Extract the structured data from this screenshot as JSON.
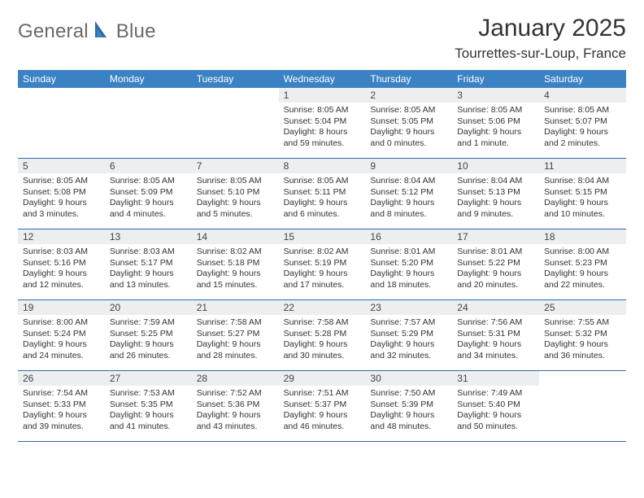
{
  "logo": {
    "text1": "General",
    "text2": "Blue"
  },
  "title": "January 2025",
  "location": "Tourrettes-sur-Loup, France",
  "colors": {
    "header_bg": "#3b82c4",
    "header_text": "#ffffff",
    "daynum_bg": "#eceef0",
    "border": "#2f6aa8",
    "logo_gray": "#6a6a6a",
    "logo_blue": "#2f6aa8"
  },
  "dow": [
    "Sunday",
    "Monday",
    "Tuesday",
    "Wednesday",
    "Thursday",
    "Friday",
    "Saturday"
  ],
  "weeks": [
    [
      null,
      null,
      null,
      {
        "n": "1",
        "sr": "8:05 AM",
        "ss": "5:04 PM",
        "dl": "8 hours and 59 minutes."
      },
      {
        "n": "2",
        "sr": "8:05 AM",
        "ss": "5:05 PM",
        "dl": "9 hours and 0 minutes."
      },
      {
        "n": "3",
        "sr": "8:05 AM",
        "ss": "5:06 PM",
        "dl": "9 hours and 1 minute."
      },
      {
        "n": "4",
        "sr": "8:05 AM",
        "ss": "5:07 PM",
        "dl": "9 hours and 2 minutes."
      }
    ],
    [
      {
        "n": "5",
        "sr": "8:05 AM",
        "ss": "5:08 PM",
        "dl": "9 hours and 3 minutes."
      },
      {
        "n": "6",
        "sr": "8:05 AM",
        "ss": "5:09 PM",
        "dl": "9 hours and 4 minutes."
      },
      {
        "n": "7",
        "sr": "8:05 AM",
        "ss": "5:10 PM",
        "dl": "9 hours and 5 minutes."
      },
      {
        "n": "8",
        "sr": "8:05 AM",
        "ss": "5:11 PM",
        "dl": "9 hours and 6 minutes."
      },
      {
        "n": "9",
        "sr": "8:04 AM",
        "ss": "5:12 PM",
        "dl": "9 hours and 8 minutes."
      },
      {
        "n": "10",
        "sr": "8:04 AM",
        "ss": "5:13 PM",
        "dl": "9 hours and 9 minutes."
      },
      {
        "n": "11",
        "sr": "8:04 AM",
        "ss": "5:15 PM",
        "dl": "9 hours and 10 minutes."
      }
    ],
    [
      {
        "n": "12",
        "sr": "8:03 AM",
        "ss": "5:16 PM",
        "dl": "9 hours and 12 minutes."
      },
      {
        "n": "13",
        "sr": "8:03 AM",
        "ss": "5:17 PM",
        "dl": "9 hours and 13 minutes."
      },
      {
        "n": "14",
        "sr": "8:02 AM",
        "ss": "5:18 PM",
        "dl": "9 hours and 15 minutes."
      },
      {
        "n": "15",
        "sr": "8:02 AM",
        "ss": "5:19 PM",
        "dl": "9 hours and 17 minutes."
      },
      {
        "n": "16",
        "sr": "8:01 AM",
        "ss": "5:20 PM",
        "dl": "9 hours and 18 minutes."
      },
      {
        "n": "17",
        "sr": "8:01 AM",
        "ss": "5:22 PM",
        "dl": "9 hours and 20 minutes."
      },
      {
        "n": "18",
        "sr": "8:00 AM",
        "ss": "5:23 PM",
        "dl": "9 hours and 22 minutes."
      }
    ],
    [
      {
        "n": "19",
        "sr": "8:00 AM",
        "ss": "5:24 PM",
        "dl": "9 hours and 24 minutes."
      },
      {
        "n": "20",
        "sr": "7:59 AM",
        "ss": "5:25 PM",
        "dl": "9 hours and 26 minutes."
      },
      {
        "n": "21",
        "sr": "7:58 AM",
        "ss": "5:27 PM",
        "dl": "9 hours and 28 minutes."
      },
      {
        "n": "22",
        "sr": "7:58 AM",
        "ss": "5:28 PM",
        "dl": "9 hours and 30 minutes."
      },
      {
        "n": "23",
        "sr": "7:57 AM",
        "ss": "5:29 PM",
        "dl": "9 hours and 32 minutes."
      },
      {
        "n": "24",
        "sr": "7:56 AM",
        "ss": "5:31 PM",
        "dl": "9 hours and 34 minutes."
      },
      {
        "n": "25",
        "sr": "7:55 AM",
        "ss": "5:32 PM",
        "dl": "9 hours and 36 minutes."
      }
    ],
    [
      {
        "n": "26",
        "sr": "7:54 AM",
        "ss": "5:33 PM",
        "dl": "9 hours and 39 minutes."
      },
      {
        "n": "27",
        "sr": "7:53 AM",
        "ss": "5:35 PM",
        "dl": "9 hours and 41 minutes."
      },
      {
        "n": "28",
        "sr": "7:52 AM",
        "ss": "5:36 PM",
        "dl": "9 hours and 43 minutes."
      },
      {
        "n": "29",
        "sr": "7:51 AM",
        "ss": "5:37 PM",
        "dl": "9 hours and 46 minutes."
      },
      {
        "n": "30",
        "sr": "7:50 AM",
        "ss": "5:39 PM",
        "dl": "9 hours and 48 minutes."
      },
      {
        "n": "31",
        "sr": "7:49 AM",
        "ss": "5:40 PM",
        "dl": "9 hours and 50 minutes."
      },
      null
    ]
  ],
  "labels": {
    "sunrise": "Sunrise:",
    "sunset": "Sunset:",
    "daylight": "Daylight:"
  }
}
